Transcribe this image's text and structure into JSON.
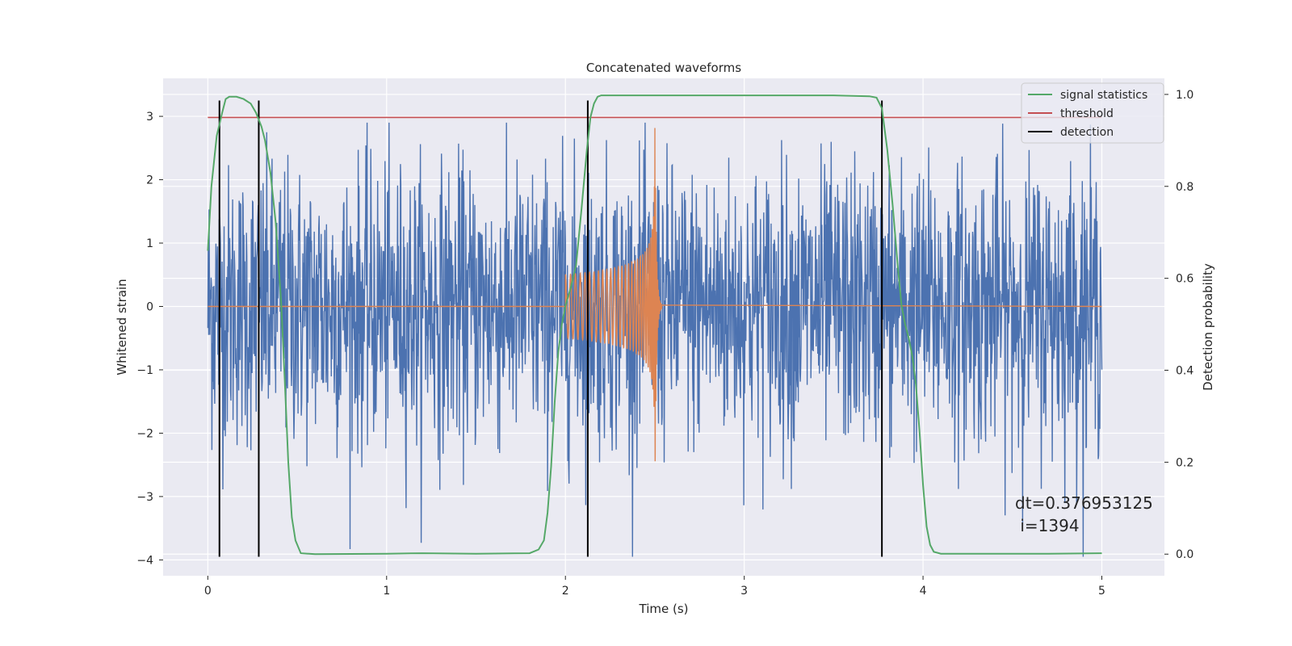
{
  "chart_data": {
    "type": "line",
    "title": "Concatenated waveforms",
    "xlabel": "Time (s)",
    "ylabel": "Whitened strain",
    "y2label": "Detection probability",
    "xlim": [
      -0.25,
      5.35
    ],
    "ylim": [
      -4.25,
      3.6
    ],
    "y2lim": [
      -0.047,
      1.035
    ],
    "x_ticks": [
      0,
      1,
      2,
      3,
      4,
      5
    ],
    "y_ticks": [
      -4,
      -3,
      -2,
      -1,
      0,
      1,
      2,
      3
    ],
    "y2_ticks": [
      0.0,
      0.2,
      0.4,
      0.6,
      0.8,
      1.0
    ],
    "x_tick_labels": [
      "0",
      "1",
      "2",
      "3",
      "4",
      "5"
    ],
    "y_tick_labels": [
      "−4",
      "−3",
      "−2",
      "−1",
      "0",
      "1",
      "2",
      "3"
    ],
    "y2_tick_labels": [
      "0.0",
      "0.2",
      "0.4",
      "0.6",
      "0.8",
      "1.0"
    ],
    "grid": true,
    "legend_position": "top-right",
    "legend": [
      {
        "label": "signal statistics",
        "color": "#55a868"
      },
      {
        "label": "threshold",
        "color": "#c44e52"
      },
      {
        "label": "detection",
        "color": "#000000"
      }
    ],
    "series": [
      {
        "name": "",
        "axis": "left",
        "kind": "noise",
        "color": "#4c72b0",
        "x_range": [
          0,
          5
        ],
        "envelope": {
          "typical_amplitude": 1.1,
          "max": 2.9,
          "min": -3.95
        }
      },
      {
        "name": "",
        "axis": "left",
        "kind": "chirp",
        "color": "#dd8452",
        "x_range": [
          0,
          5
        ],
        "chirp": {
          "start": 2.0,
          "merger": 2.5,
          "ringdown_end": 2.54,
          "start_amplitude": 0.5,
          "peak_amplitude": 3.2
        }
      },
      {
        "name": "threshold",
        "axis": "right",
        "color": "#c44e52",
        "x": [
          0,
          5
        ],
        "y": [
          0.95,
          0.95
        ]
      },
      {
        "name": "signal statistics",
        "axis": "right",
        "color": "#55a868",
        "x": [
          0.0,
          0.02,
          0.05,
          0.08,
          0.1,
          0.12,
          0.16,
          0.2,
          0.24,
          0.27,
          0.29,
          0.3,
          0.32,
          0.35,
          0.38,
          0.41,
          0.43,
          0.45,
          0.47,
          0.49,
          0.52,
          0.6,
          1.0,
          1.2,
          1.5,
          1.8,
          1.85,
          1.88,
          1.9,
          1.92,
          1.94,
          1.96,
          1.98,
          2.0,
          2.03,
          2.06,
          2.09,
          2.12,
          2.14,
          2.16,
          2.18,
          2.2,
          2.25,
          2.4,
          3.0,
          3.5,
          3.7,
          3.74,
          3.77,
          3.8,
          3.83,
          3.86,
          3.88,
          3.9,
          3.92,
          3.94,
          3.96,
          3.98,
          4.0,
          4.02,
          4.04,
          4.06,
          4.1,
          4.3,
          4.7,
          5.0
        ],
        "y": [
          0.66,
          0.8,
          0.91,
          0.96,
          0.99,
          0.995,
          0.995,
          0.99,
          0.98,
          0.96,
          0.94,
          0.93,
          0.9,
          0.83,
          0.72,
          0.55,
          0.38,
          0.2,
          0.08,
          0.03,
          0.002,
          0.0,
          0.001,
          0.002,
          0.001,
          0.002,
          0.01,
          0.03,
          0.09,
          0.19,
          0.33,
          0.44,
          0.5,
          0.54,
          0.58,
          0.63,
          0.75,
          0.88,
          0.95,
          0.98,
          0.995,
          0.998,
          0.998,
          0.998,
          0.998,
          0.998,
          0.996,
          0.993,
          0.97,
          0.88,
          0.76,
          0.62,
          0.54,
          0.5,
          0.47,
          0.43,
          0.37,
          0.27,
          0.15,
          0.06,
          0.02,
          0.005,
          0.001,
          0.001,
          0.001,
          0.002
        ]
      }
    ],
    "detections": [
      0.065,
      0.285,
      2.125,
      3.77
    ],
    "detection_range": [
      -3.95,
      3.25
    ],
    "annotation": "dt=0.376953125\n i=1394"
  }
}
